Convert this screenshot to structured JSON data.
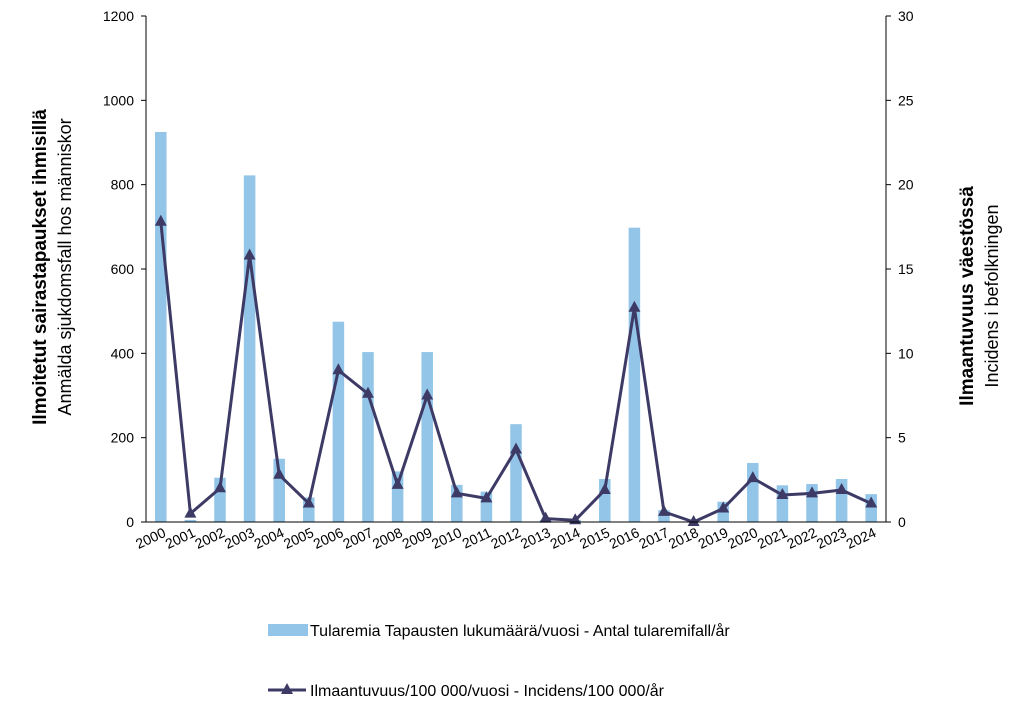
{
  "chart_data": {
    "type": "bar",
    "categories": [
      "2000",
      "2001",
      "2002",
      "2003",
      "2004",
      "2005",
      "2006",
      "2007",
      "2008",
      "2009",
      "2010",
      "2011",
      "2012",
      "2013",
      "2014",
      "2015",
      "2016",
      "2017",
      "2018",
      "2019",
      "2020",
      "2021",
      "2022",
      "2023",
      "2024"
    ],
    "series": [
      {
        "name": "Tularemia Tapausten lukumäärä/vuosi - Antal tularemifall/år",
        "type": "bar",
        "axis": "left",
        "color": "#92c5e8",
        "values": [
          925,
          5,
          105,
          822,
          150,
          58,
          475,
          403,
          120,
          403,
          88,
          72,
          232,
          5,
          5,
          102,
          698,
          28,
          5,
          48,
          140,
          87,
          90,
          102,
          66
        ]
      },
      {
        "name": "Ilmaantuvuus/100 000/vuosi - Incidens/100 000/år",
        "type": "line",
        "axis": "right",
        "color": "#3d3a66",
        "marker": "triangle",
        "values": [
          17.8,
          0.5,
          2.0,
          15.8,
          2.8,
          1.1,
          9.0,
          7.6,
          2.2,
          7.5,
          1.7,
          1.4,
          4.3,
          0.2,
          0.1,
          1.9,
          12.7,
          0.6,
          0.0,
          0.8,
          2.6,
          1.6,
          1.7,
          1.9,
          1.1
        ]
      }
    ],
    "y_left": {
      "label_bold": "Ilmoitetut sairastapaukset ihmisillä",
      "label": "Anmälda sjukdomsfall hos människor",
      "ylim": [
        0,
        1200
      ],
      "ticks": [
        "0",
        "200",
        "400",
        "600",
        "800",
        "1000",
        "1200"
      ]
    },
    "y_right": {
      "label_bold": "Ilmaantuvuus väestössä",
      "label": "Incidens i befolkningen",
      "ylim": [
        0,
        30
      ],
      "ticks": [
        "0",
        "5",
        "10",
        "15",
        "20",
        "25",
        "30"
      ]
    },
    "title": "",
    "grid": false,
    "legend_position": "bottom"
  }
}
